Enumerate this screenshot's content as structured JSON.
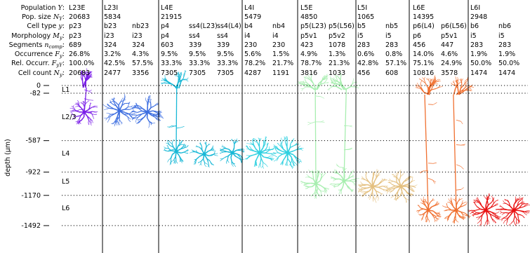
{
  "rows": [
    {
      "text": "Population ",
      "math": "Y",
      "end": ":"
    },
    {
      "text": "Pop. size ",
      "math": "N",
      "sub": "Y",
      "end": ":"
    },
    {
      "text": "Cell type ",
      "math": "y",
      "end": ":"
    },
    {
      "text": "Morphology ",
      "math": "M",
      "sub": "y",
      "end": ":"
    },
    {
      "text": "Segments ",
      "math": "n",
      "sub": "comp",
      "end": ":"
    },
    {
      "text": "Occurrence ",
      "math": "F",
      "sub": "y",
      "end": ":"
    },
    {
      "text": "Rel. Occurr. ",
      "math": "F",
      "sub": "yY",
      "end": ":"
    },
    {
      "text": "Cell count ",
      "math": "N",
      "sub": "y",
      "end": ":"
    }
  ],
  "populations": [
    {
      "name": "L23E",
      "size": "20683",
      "cells": [
        {
          "type": "p23",
          "morphology": "p23",
          "segments": "689",
          "occurrence": "26.8%",
          "rel_occurrence": "100.0%",
          "count": "20683"
        }
      ]
    },
    {
      "name": "L23I",
      "size": "5834",
      "cells": [
        {
          "type": "b23",
          "morphology": "i23",
          "segments": "324",
          "occurrence": "3.2%",
          "rel_occurrence": "42.5%",
          "count": "2477"
        },
        {
          "type": "nb23",
          "morphology": "i23",
          "segments": "324",
          "occurrence": "4.3%",
          "rel_occurrence": "57.5%",
          "count": "3356"
        }
      ]
    },
    {
      "name": "L4E",
      "size": "21915",
      "cells": [
        {
          "type": "p4",
          "morphology": "p4",
          "segments": "603",
          "occurrence": "9.5%",
          "rel_occurrence": "33.3%",
          "count": "7305"
        },
        {
          "type": "ss4(L23)",
          "morphology": "ss4",
          "segments": "339",
          "occurrence": "9.5%",
          "rel_occurrence": "33.3%",
          "count": "7305"
        },
        {
          "type": "ss4(L4)",
          "morphology": "ss4",
          "segments": "339",
          "occurrence": "9.5%",
          "rel_occurrence": "33.3%",
          "count": "7305"
        }
      ]
    },
    {
      "name": "L4I",
      "size": "5479",
      "cells": [
        {
          "type": "b4",
          "morphology": "i4",
          "segments": "230",
          "occurrence": "5.6%",
          "rel_occurrence": "78.2%",
          "count": "4287"
        },
        {
          "type": "nb4",
          "morphology": "i4",
          "segments": "230",
          "occurrence": "1.5%",
          "rel_occurrence": "21.7%",
          "count": "1191"
        }
      ]
    },
    {
      "name": "L5E",
      "size": "4850",
      "cells": [
        {
          "type": "p5(L23)",
          "morphology": "p5v1",
          "segments": "423",
          "occurrence": "4.9%",
          "rel_occurrence": "78.7%",
          "count": "3816"
        },
        {
          "type": "p5(L56)",
          "morphology": "p5v2",
          "segments": "1078",
          "occurrence": "1.3%",
          "rel_occurrence": "21.3%",
          "count": "1033"
        }
      ]
    },
    {
      "name": "L5I",
      "size": "1065",
      "cells": [
        {
          "type": "b5",
          "morphology": "i5",
          "segments": "283",
          "occurrence": "0.6%",
          "rel_occurrence": "42.8%",
          "count": "456"
        },
        {
          "type": "nb5",
          "morphology": "i5",
          "segments": "283",
          "occurrence": "0.8%",
          "rel_occurrence": "57.1%",
          "count": "608"
        }
      ]
    },
    {
      "name": "L6E",
      "size": "14395",
      "cells": [
        {
          "type": "p6(L4)",
          "morphology": "p6",
          "segments": "456",
          "occurrence": "14.0%",
          "rel_occurrence": "75.1%",
          "count": "10816"
        },
        {
          "type": "p6(L56)",
          "morphology": "p5v1",
          "segments": "447",
          "occurrence": "4.6%",
          "rel_occurrence": "24.9%",
          "count": "3578"
        }
      ]
    },
    {
      "name": "L6I",
      "size": "2948",
      "cells": [
        {
          "type": "b6",
          "morphology": "i5",
          "segments": "283",
          "occurrence": "1.9%",
          "rel_occurrence": "50.0%",
          "count": "1474"
        },
        {
          "type": "nb6",
          "morphology": "i5",
          "segments": "283",
          "occurrence": "1.9%",
          "rel_occurrence": "50.0%",
          "count": "1474"
        }
      ]
    }
  ],
  "depth_axis": {
    "label": "depth (μm)",
    "ticks": [
      0,
      -82,
      -587,
      -922,
      -1170,
      -1492
    ]
  },
  "layers": [
    "L1",
    "L2/3",
    "L4",
    "L5",
    "L6"
  ]
}
